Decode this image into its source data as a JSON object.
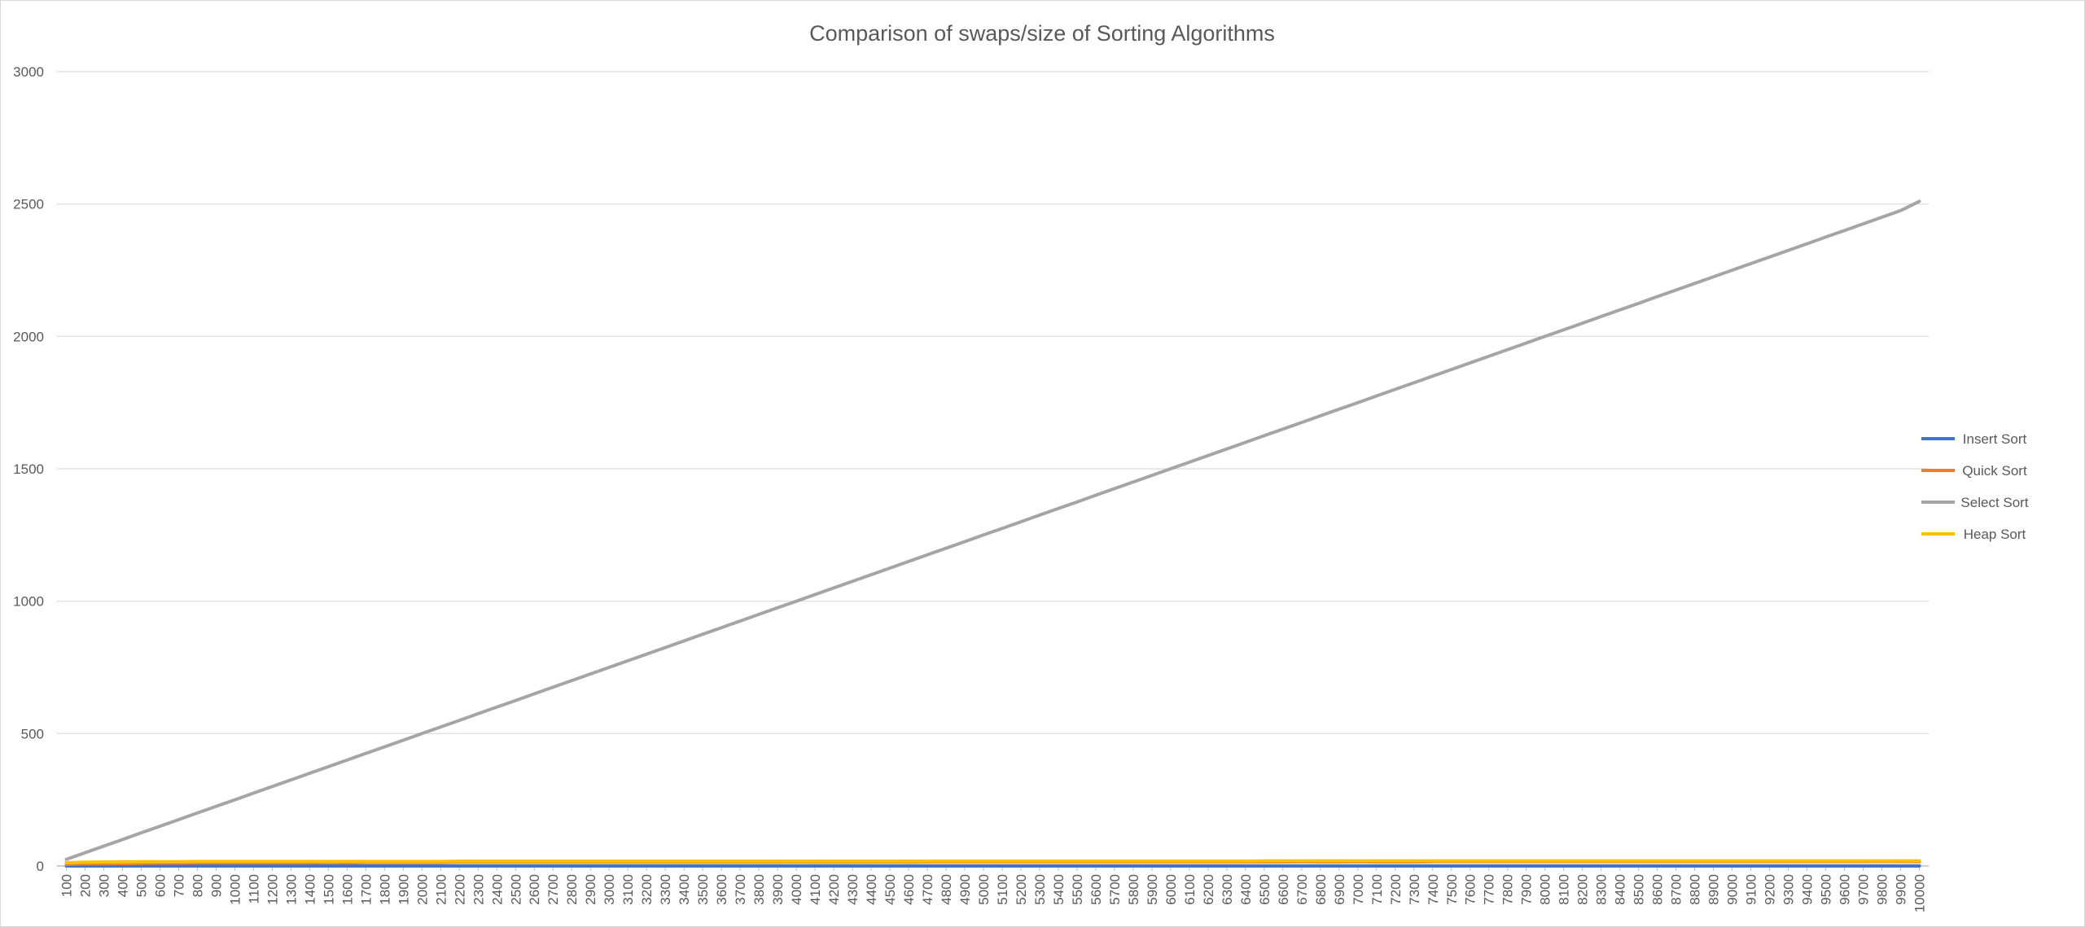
{
  "chart_data": {
    "type": "line",
    "title": "Comparison of swaps/size of Sorting Algorithms",
    "xlabel": "",
    "ylabel": "",
    "ylim": [
      0,
      3000
    ],
    "yticks": [
      0,
      500,
      1000,
      1500,
      2000,
      2500,
      3000
    ],
    "grid": true,
    "legend_position": "right",
    "x": [
      100,
      200,
      300,
      400,
      500,
      600,
      700,
      800,
      900,
      1000,
      1100,
      1200,
      1300,
      1400,
      1500,
      1600,
      1700,
      1800,
      1900,
      2000,
      2100,
      2200,
      2300,
      2400,
      2500,
      2600,
      2700,
      2800,
      2900,
      3000,
      3100,
      3200,
      3300,
      3400,
      3500,
      3600,
      3700,
      3800,
      3900,
      4000,
      4100,
      4200,
      4300,
      4400,
      4500,
      4600,
      4700,
      4800,
      4900,
      5000,
      5100,
      5200,
      5300,
      5400,
      5500,
      5600,
      5700,
      5800,
      5900,
      6000,
      6100,
      6200,
      6300,
      6400,
      6500,
      6600,
      6700,
      6800,
      6900,
      7000,
      7100,
      7200,
      7300,
      7400,
      7500,
      7600,
      7700,
      7800,
      7900,
      8000,
      8100,
      8200,
      8300,
      8400,
      8500,
      8600,
      8700,
      8800,
      8900,
      9000,
      9100,
      9200,
      9300,
      9400,
      9500,
      9600,
      9700,
      9800,
      9900,
      10000
    ],
    "series": [
      {
        "name": "Insert Sort",
        "color": "#4472c4",
        "values": [
          0,
          0,
          0,
          0,
          0,
          0,
          0,
          0,
          0,
          0,
          0,
          0,
          0,
          0,
          0,
          0,
          0,
          0,
          0,
          0,
          0,
          0,
          0,
          0,
          0,
          0,
          0,
          0,
          0,
          0,
          0,
          0,
          0,
          0,
          0,
          0,
          0,
          0,
          0,
          0,
          0,
          0,
          0,
          0,
          0,
          0,
          0,
          0,
          0,
          0,
          0,
          0,
          0,
          0,
          0,
          0,
          0,
          0,
          0,
          0,
          0,
          0,
          0,
          0,
          0,
          0,
          0,
          0,
          0,
          0,
          0,
          0,
          0,
          0,
          0,
          0,
          0,
          0,
          0,
          0,
          0,
          0,
          0,
          0,
          0,
          0,
          0,
          0,
          0,
          0,
          0,
          0,
          0,
          0,
          0,
          0,
          0,
          0,
          0,
          0
        ]
      },
      {
        "name": "Quick Sort",
        "color": "#ed7d31",
        "values": [
          6,
          8,
          8,
          9,
          10,
          11,
          11,
          12,
          12,
          12,
          12,
          12,
          12,
          12,
          13,
          12,
          13,
          13,
          13,
          13,
          13,
          14,
          14,
          14,
          14,
          14,
          14,
          14,
          14,
          14,
          14,
          14,
          14,
          14,
          14,
          14,
          14,
          14,
          14,
          15,
          14,
          14,
          14,
          14,
          15,
          14,
          15,
          15,
          15,
          15,
          15,
          15,
          15,
          15,
          15,
          15,
          15,
          15,
          15,
          15,
          15,
          15,
          15,
          15,
          15,
          15,
          16,
          15,
          15,
          16,
          15,
          15,
          15,
          16,
          16,
          16,
          16,
          16,
          16,
          16,
          16,
          16,
          16,
          16,
          16,
          16,
          16,
          16,
          16,
          16,
          16,
          16,
          16,
          16,
          16,
          16,
          16,
          17,
          16,
          16
        ]
      },
      {
        "name": "Select Sort",
        "color": "#a5a5a5",
        "values": [
          25,
          50,
          75,
          100,
          125,
          150,
          175,
          200,
          225,
          250,
          275,
          300,
          325,
          350,
          375,
          400,
          425,
          450,
          475,
          500,
          525,
          550,
          575,
          600,
          625,
          650,
          675,
          700,
          725,
          750,
          775,
          800,
          825,
          850,
          875,
          900,
          925,
          950,
          975,
          1000,
          1025,
          1050,
          1075,
          1100,
          1125,
          1150,
          1175,
          1200,
          1225,
          1250,
          1275,
          1300,
          1325,
          1350,
          1375,
          1400,
          1425,
          1450,
          1475,
          1500,
          1525,
          1550,
          1575,
          1600,
          1625,
          1650,
          1675,
          1700,
          1725,
          1750,
          1775,
          1800,
          1825,
          1850,
          1875,
          1900,
          1925,
          1950,
          1975,
          2000,
          2025,
          2050,
          2075,
          2100,
          2125,
          2150,
          2175,
          2200,
          2225,
          2250,
          2275,
          2300,
          2325,
          2350,
          2375,
          2400,
          2425,
          2450,
          2475,
          2510
        ]
      },
      {
        "name": "Heap Sort",
        "color": "#ffc000",
        "values": [
          12,
          14,
          15,
          15,
          16,
          16,
          16,
          17,
          17,
          17,
          17,
          17,
          17,
          17,
          17,
          17,
          17,
          17,
          17,
          17,
          17,
          18,
          18,
          18,
          18,
          18,
          18,
          18,
          18,
          18,
          18,
          18,
          18,
          18,
          18,
          18,
          18,
          18,
          18,
          18,
          18,
          18,
          18,
          18,
          18,
          18,
          18,
          18,
          18,
          18,
          18,
          18,
          18,
          18,
          18,
          18,
          18,
          18,
          18,
          18,
          18,
          18,
          18,
          18,
          19,
          19,
          19,
          19,
          19,
          19,
          19,
          19,
          19,
          19,
          19,
          19,
          19,
          19,
          19,
          19,
          19,
          19,
          19,
          19,
          19,
          19,
          19,
          19,
          19,
          19,
          19,
          19,
          19,
          19,
          19,
          19,
          19,
          19,
          19,
          19
        ]
      }
    ]
  }
}
